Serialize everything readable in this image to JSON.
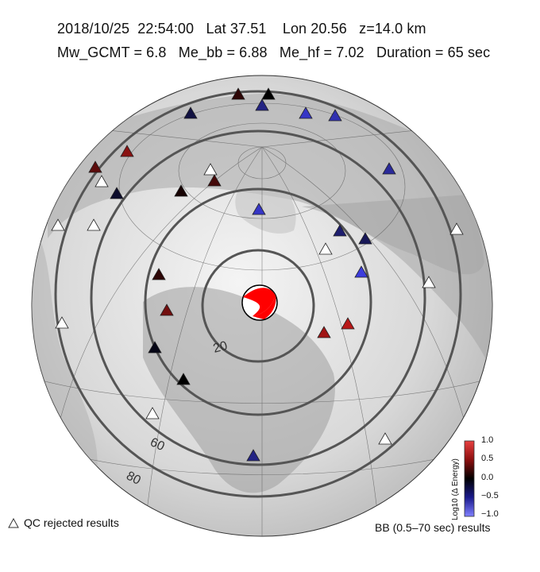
{
  "header": {
    "line1": "2018/10/25  22:54:00   Lat 37.51    Lon 20.56   z=14.0 km",
    "line2": "Mw_GCMT = 6.8   Me_bb = 6.88   Me_hf = 7.02   Duration = 65 sec"
  },
  "distance_rings": [
    {
      "deg": 20,
      "label": "20"
    },
    {
      "deg": 40,
      "label": ""
    },
    {
      "deg": 60,
      "label": "60"
    },
    {
      "deg": 80,
      "label": "80"
    }
  ],
  "legend": {
    "qc_label": "QC rejected results",
    "bb_label": "BB (0.5–70 sec) results"
  },
  "colorbar": {
    "title": "Log10 (Δ Energy)",
    "ticks": [
      "1.0",
      "0.5",
      "0.0",
      "−0.5",
      "−1.0"
    ],
    "colors": {
      "high": "#c81e1e",
      "mid": "#000000",
      "low": "#3a3ad8"
    }
  },
  "stations": [
    {
      "v": 0.2
    },
    {
      "v": 0.0
    },
    {
      "v": -0.6
    },
    {
      "v": -0.8
    },
    {
      "v": -0.9
    },
    {
      "v": -0.3
    },
    {
      "v": 0.6
    },
    {
      "v": 0.4
    },
    {
      "v": -0.2
    },
    {
      "v": 0.1
    },
    {
      "v": -0.9
    },
    {
      "v": 0.3
    },
    {
      "v": -0.7
    },
    {
      "v": -0.5
    },
    {
      "v": -0.4
    },
    {
      "v": -1.0
    },
    {
      "v": 0.2
    },
    {
      "v": 0.5
    },
    {
      "v": -0.1
    },
    {
      "v": 0.7
    },
    {
      "v": 0.8
    },
    {
      "v": 0.0
    },
    {
      "v": -0.6
    }
  ]
}
